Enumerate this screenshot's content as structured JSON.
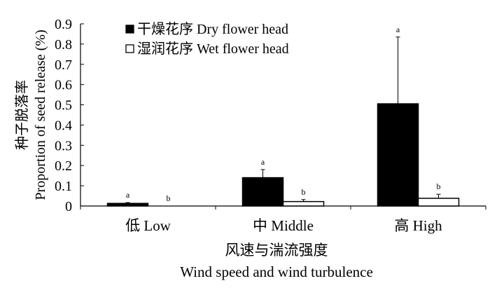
{
  "chart_data": {
    "type": "bar",
    "categories": [
      "低 Low",
      "中 Middle",
      "高 High"
    ],
    "series": [
      {
        "name": "干燥花序  Dry flower head",
        "color": "#000000",
        "values": [
          0.013,
          0.14,
          0.505
        ],
        "errors": [
          0.004,
          0.04,
          0.33
        ],
        "letters": [
          "a",
          "a",
          "a"
        ]
      },
      {
        "name": "湿润花序  Wet flower head",
        "color": "#ffffff",
        "values": [
          0.0,
          0.022,
          0.038
        ],
        "errors": [
          0.0,
          0.01,
          0.02
        ],
        "letters": [
          "b",
          "b",
          "b"
        ]
      }
    ],
    "xlabel_cn": "风速与湍流强度",
    "xlabel_en": "Wind speed and wind turbulence",
    "ylabel_cn": "种子脱落率",
    "ylabel_en": "Proportion of seed release (%)",
    "ylim": [
      0,
      0.9
    ],
    "yticks": [
      "0",
      "0.1",
      "0.2",
      "0.3",
      "0.4",
      "0.5",
      "0.6",
      "0.7",
      "0.8",
      "0.9"
    ],
    "legend_position": "top-left",
    "grid": false
  }
}
